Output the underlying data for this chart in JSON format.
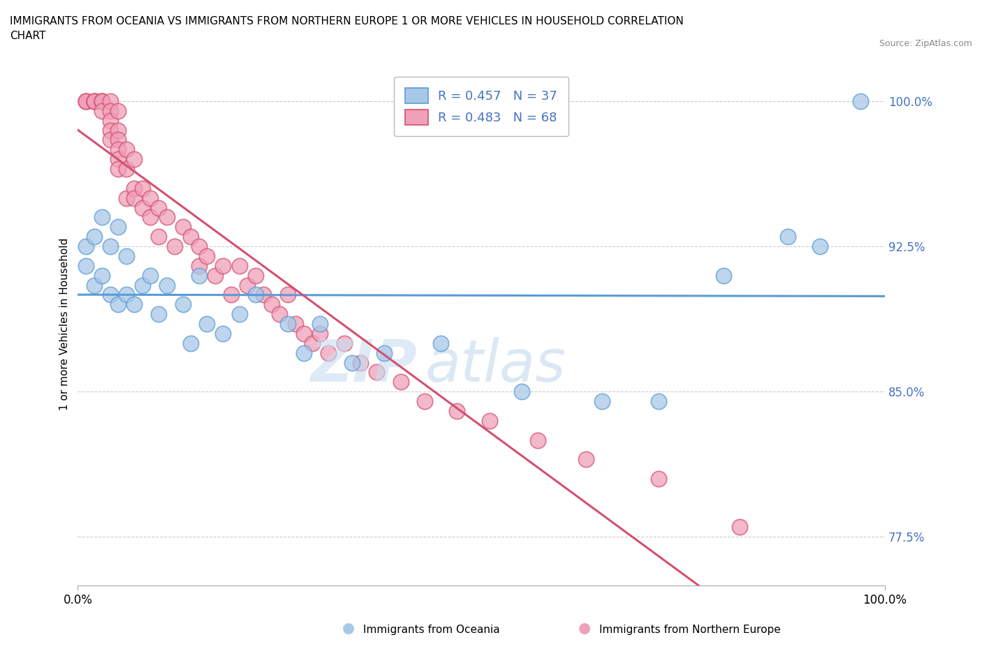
{
  "title": "IMMIGRANTS FROM OCEANIA VS IMMIGRANTS FROM NORTHERN EUROPE 1 OR MORE VEHICLES IN HOUSEHOLD CORRELATION\nCHART",
  "source_text": "Source: ZipAtlas.com",
  "ylabel": "1 or more Vehicles in Household",
  "xlim": [
    0,
    100
  ],
  "ylim": [
    75,
    102
  ],
  "yticks": [
    77.5,
    85.0,
    92.5,
    100.0
  ],
  "ytick_labels": [
    "77.5%",
    "85.0%",
    "92.5%",
    "100.0%"
  ],
  "R_oceania": 0.457,
  "N_oceania": 37,
  "R_northern": 0.483,
  "N_northern": 68,
  "color_oceania": "#a8c8e8",
  "color_northern": "#f0a0b8",
  "color_line_oceania": "#5b9bd5",
  "color_line_northern": "#d45070",
  "legend_text_color": "#4472c4",
  "oceania_x": [
    1,
    1,
    2,
    2,
    3,
    3,
    4,
    4,
    5,
    5,
    6,
    6,
    7,
    8,
    9,
    10,
    11,
    13,
    14,
    15,
    16,
    18,
    20,
    22,
    26,
    28,
    30,
    34,
    38,
    45,
    55,
    65,
    72,
    80,
    88,
    92,
    97
  ],
  "oceania_y": [
    91.5,
    92.5,
    90.5,
    93.0,
    91.0,
    94.0,
    90.0,
    92.5,
    89.5,
    93.5,
    90.0,
    92.0,
    89.5,
    90.5,
    91.0,
    89.0,
    90.5,
    89.5,
    87.5,
    91.0,
    88.5,
    88.0,
    89.0,
    90.0,
    88.5,
    87.0,
    88.5,
    86.5,
    87.0,
    87.5,
    85.0,
    84.5,
    84.5,
    91.0,
    93.0,
    92.5,
    100.0
  ],
  "northern_x": [
    1,
    1,
    1,
    2,
    2,
    2,
    2,
    3,
    3,
    3,
    3,
    3,
    4,
    4,
    4,
    4,
    4,
    5,
    5,
    5,
    5,
    5,
    5,
    6,
    6,
    6,
    7,
    7,
    7,
    8,
    8,
    9,
    9,
    10,
    10,
    11,
    12,
    13,
    14,
    15,
    15,
    16,
    17,
    18,
    19,
    20,
    21,
    22,
    23,
    24,
    25,
    26,
    27,
    28,
    29,
    30,
    31,
    33,
    35,
    37,
    40,
    43,
    47,
    51,
    57,
    63,
    72,
    82
  ],
  "northern_y": [
    100.0,
    100.0,
    100.0,
    100.0,
    100.0,
    100.0,
    100.0,
    100.0,
    100.0,
    100.0,
    100.0,
    99.5,
    100.0,
    99.5,
    99.0,
    98.5,
    98.0,
    99.5,
    98.5,
    98.0,
    97.5,
    97.0,
    96.5,
    97.5,
    96.5,
    95.0,
    97.0,
    95.5,
    95.0,
    95.5,
    94.5,
    95.0,
    94.0,
    94.5,
    93.0,
    94.0,
    92.5,
    93.5,
    93.0,
    92.5,
    91.5,
    92.0,
    91.0,
    91.5,
    90.0,
    91.5,
    90.5,
    91.0,
    90.0,
    89.5,
    89.0,
    90.0,
    88.5,
    88.0,
    87.5,
    88.0,
    87.0,
    87.5,
    86.5,
    86.0,
    85.5,
    84.5,
    84.0,
    83.5,
    82.5,
    81.5,
    80.5,
    78.0
  ]
}
